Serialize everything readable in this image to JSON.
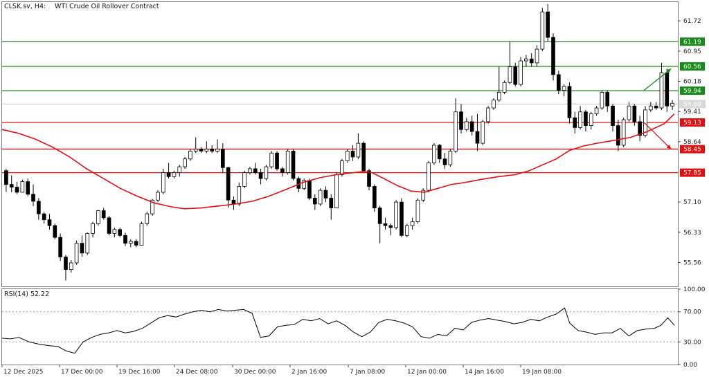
{
  "header": {
    "symbol": "CLSK.sv, H4:",
    "title": "WTI Crude Oil Rollover Contract"
  },
  "rsi_panel": {
    "label": "RSI(14) 52.22"
  },
  "colors": {
    "bull": "#ffffff",
    "bear": "#000000",
    "wick": "#000000",
    "ma": "#e01010",
    "support": "#e01010",
    "resistance": "#1a8a1a",
    "current": "#c0c0c0",
    "rsi": "#000000",
    "grid": "#999999"
  },
  "chart_data": [
    {
      "type": "candlestick",
      "title": "WTI Crude Oil Rollover Contract",
      "timeframe": "H4",
      "ylim": [
        54.95,
        62.2
      ],
      "y_ticks": [
        "61.72",
        "60.95",
        "60.18",
        "59.41",
        "58.64",
        "57.10",
        "56.33",
        "55.56"
      ],
      "x_ticks": [
        "12 Dec 2025",
        "17 Dec 00:00",
        "19 Dec 16:00",
        "24 Dec 08:00",
        "30 Dec 00:00",
        "2 Jan 16:00",
        "7 Jan 08:00",
        "12 Jan 00:00",
        "14 Jan 16:00",
        "19 Jan 08:00"
      ],
      "current_price": "59.60",
      "moving_average": {
        "points": [
          [
            0,
            58.95
          ],
          [
            10,
            58.85
          ],
          [
            20,
            58.7
          ],
          [
            30,
            58.5
          ],
          [
            40,
            58.25
          ],
          [
            50,
            57.95
          ],
          [
            60,
            57.7
          ],
          [
            70,
            57.45
          ],
          [
            80,
            57.25
          ],
          [
            90,
            57.08
          ],
          [
            100,
            56.98
          ],
          [
            108,
            56.93
          ],
          [
            118,
            56.95
          ],
          [
            128,
            57.0
          ],
          [
            138,
            57.05
          ],
          [
            148,
            57.12
          ],
          [
            158,
            57.25
          ],
          [
            168,
            57.42
          ],
          [
            178,
            57.6
          ],
          [
            188,
            57.72
          ],
          [
            198,
            57.8
          ],
          [
            208,
            57.85
          ],
          [
            214,
            57.88
          ],
          [
            219,
            57.85
          ],
          [
            226,
            57.7
          ],
          [
            234,
            57.52
          ],
          [
            242,
            57.38
          ],
          [
            250,
            57.35
          ],
          [
            258,
            57.45
          ],
          [
            266,
            57.55
          ],
          [
            274,
            57.6
          ],
          [
            284,
            57.68
          ],
          [
            294,
            57.75
          ],
          [
            304,
            57.8
          ],
          [
            312,
            57.9
          ],
          [
            320,
            58.05
          ],
          [
            328,
            58.2
          ],
          [
            336,
            58.42
          ],
          [
            344,
            58.53
          ],
          [
            352,
            58.6
          ],
          [
            362,
            58.67
          ],
          [
            372,
            58.75
          ],
          [
            382,
            58.9
          ],
          [
            392,
            59.1
          ],
          [
            398,
            59.35
          ]
        ]
      },
      "levels": [
        {
          "label": "61.19",
          "value": 61.19,
          "kind": "resistance"
        },
        {
          "label": "60.56",
          "value": 60.56,
          "kind": "resistance"
        },
        {
          "label": "59.94",
          "value": 59.94,
          "kind": "resistance"
        },
        {
          "label": "59.13",
          "value": 59.13,
          "kind": "support"
        },
        {
          "label": "58.45",
          "value": 58.45,
          "kind": "support"
        },
        {
          "label": "57.85",
          "value": 57.85,
          "kind": "support"
        }
      ],
      "arrows": [
        {
          "kind": "resistance",
          "direction": "up",
          "from": [
            380,
            59.95
          ],
          "to": [
            396,
            60.5
          ]
        },
        {
          "kind": "support",
          "direction": "down",
          "from": [
            380,
            59.13
          ],
          "to": [
            396,
            58.45
          ]
        }
      ],
      "candles_ohlc": [
        [
          57.9,
          57.95,
          57.36,
          57.55
        ],
        [
          57.55,
          57.78,
          57.35,
          57.48
        ],
        [
          57.48,
          57.62,
          57.3,
          57.35
        ],
        [
          57.35,
          57.67,
          57.35,
          57.62
        ],
        [
          57.62,
          57.7,
          57.25,
          57.3
        ],
        [
          57.3,
          57.55,
          57.0,
          57.12
        ],
        [
          57.12,
          57.2,
          56.65,
          56.8
        ],
        [
          56.8,
          56.85,
          56.55,
          56.65
        ],
        [
          56.65,
          56.8,
          56.4,
          56.5
        ],
        [
          56.5,
          56.55,
          56.15,
          56.2
        ],
        [
          56.2,
          56.3,
          55.6,
          55.7
        ],
        [
          55.7,
          55.75,
          55.1,
          55.38
        ],
        [
          55.38,
          55.62,
          55.3,
          55.55
        ],
        [
          55.55,
          56.12,
          55.5,
          56.05
        ],
        [
          56.05,
          56.25,
          55.7,
          55.8
        ],
        [
          55.8,
          56.33,
          55.75,
          56.3
        ],
        [
          56.3,
          56.6,
          56.2,
          56.55
        ],
        [
          56.55,
          56.9,
          56.5,
          56.88
        ],
        [
          56.88,
          56.95,
          56.65,
          56.7
        ],
        [
          56.7,
          56.75,
          56.25,
          56.3
        ],
        [
          56.3,
          56.45,
          56.2,
          56.4
        ],
        [
          56.4,
          56.45,
          56.2,
          56.25
        ],
        [
          56.25,
          56.32,
          55.98,
          56.05
        ],
        [
          56.05,
          56.15,
          55.95,
          56.1
        ],
        [
          56.1,
          56.15,
          55.95,
          56.0
        ],
        [
          56.0,
          56.6,
          56.0,
          56.55
        ],
        [
          56.55,
          56.85,
          56.5,
          56.8
        ],
        [
          56.8,
          57.18,
          56.75,
          57.15
        ],
        [
          57.15,
          57.4,
          57.1,
          57.35
        ],
        [
          57.35,
          57.95,
          57.3,
          57.85
        ],
        [
          57.85,
          58.1,
          57.7,
          57.75
        ],
        [
          57.75,
          57.9,
          57.7,
          57.85
        ],
        [
          57.85,
          58.05,
          57.75,
          58.0
        ],
        [
          58.0,
          58.25,
          57.95,
          58.2
        ],
        [
          58.2,
          58.45,
          58.15,
          58.4
        ],
        [
          58.4,
          58.75,
          58.35,
          58.45
        ],
        [
          58.45,
          58.5,
          58.35,
          58.4
        ],
        [
          58.4,
          58.65,
          58.35,
          58.45
        ],
        [
          58.45,
          58.55,
          58.35,
          58.4
        ],
        [
          58.4,
          58.7,
          58.35,
          58.45
        ],
        [
          58.45,
          58.6,
          57.85,
          57.98
        ],
        [
          57.98,
          58.0,
          56.96,
          57.15
        ],
        [
          57.15,
          57.25,
          56.9,
          57.05
        ],
        [
          57.05,
          57.6,
          57.0,
          57.5
        ],
        [
          57.5,
          57.9,
          57.45,
          57.85
        ],
        [
          57.85,
          58.0,
          57.8,
          57.95
        ],
        [
          57.95,
          58.1,
          57.8,
          57.85
        ],
        [
          57.85,
          57.95,
          57.55,
          57.7
        ],
        [
          57.7,
          58.05,
          57.65,
          58.0
        ],
        [
          58.0,
          58.4,
          57.95,
          58.35
        ],
        [
          58.35,
          58.4,
          57.9,
          57.95
        ],
        [
          57.95,
          58.0,
          57.75,
          57.85
        ],
        [
          57.85,
          58.45,
          57.8,
          58.4
        ],
        [
          58.4,
          58.45,
          57.65,
          57.7
        ],
        [
          57.7,
          57.75,
          57.35,
          57.45
        ],
        [
          57.45,
          57.7,
          57.4,
          57.65
        ],
        [
          57.65,
          57.7,
          57.15,
          57.2
        ],
        [
          57.2,
          57.3,
          56.9,
          57.05
        ],
        [
          57.05,
          57.45,
          57.0,
          57.4
        ],
        [
          57.4,
          57.5,
          57.1,
          57.2
        ],
        [
          57.2,
          57.3,
          56.65,
          56.95
        ],
        [
          56.95,
          57.85,
          56.95,
          57.8
        ],
        [
          57.8,
          58.2,
          57.75,
          58.15
        ],
        [
          58.15,
          58.45,
          58.1,
          58.4
        ],
        [
          58.4,
          58.55,
          58.15,
          58.25
        ],
        [
          58.25,
          58.85,
          58.2,
          58.6
        ],
        [
          58.6,
          58.65,
          57.85,
          57.9
        ],
        [
          57.9,
          57.95,
          57.4,
          57.5
        ],
        [
          57.5,
          57.55,
          56.85,
          56.95
        ],
        [
          56.95,
          57.0,
          56.05,
          56.55
        ],
        [
          56.55,
          56.7,
          56.4,
          56.5
        ],
        [
          56.5,
          56.55,
          56.25,
          56.45
        ],
        [
          56.45,
          57.15,
          56.4,
          57.1
        ],
        [
          57.1,
          57.2,
          56.2,
          56.25
        ],
        [
          56.25,
          56.55,
          56.2,
          56.5
        ],
        [
          56.5,
          56.7,
          56.4,
          56.6
        ],
        [
          56.6,
          57.2,
          56.55,
          57.15
        ],
        [
          57.15,
          57.45,
          57.1,
          57.4
        ],
        [
          57.4,
          58.15,
          57.35,
          58.1
        ],
        [
          58.1,
          58.6,
          58.05,
          58.55
        ],
        [
          58.55,
          58.58,
          58.1,
          58.2
        ],
        [
          58.2,
          58.35,
          57.95,
          58.05
        ],
        [
          58.05,
          58.45,
          58.0,
          58.4
        ],
        [
          58.4,
          59.75,
          58.35,
          59.4
        ],
        [
          59.4,
          59.6,
          58.85,
          58.95
        ],
        [
          58.95,
          59.25,
          58.9,
          59.15
        ],
        [
          59.15,
          59.3,
          58.8,
          58.9
        ],
        [
          58.9,
          59.35,
          58.4,
          58.6
        ],
        [
          58.6,
          59.2,
          58.55,
          59.15
        ],
        [
          59.15,
          59.55,
          59.1,
          59.5
        ],
        [
          59.5,
          59.75,
          59.45,
          59.7
        ],
        [
          59.7,
          60.55,
          59.65,
          59.9
        ],
        [
          59.9,
          60.2,
          59.85,
          60.15
        ],
        [
          60.15,
          61.2,
          60.1,
          60.55
        ],
        [
          60.55,
          60.65,
          60.05,
          60.1
        ],
        [
          60.1,
          60.8,
          60.05,
          60.7
        ],
        [
          60.7,
          60.85,
          60.55,
          60.75
        ],
        [
          60.75,
          60.9,
          60.55,
          60.65
        ],
        [
          60.65,
          61.1,
          60.55,
          61.0
        ],
        [
          61.0,
          62.05,
          60.95,
          61.95
        ],
        [
          61.95,
          62.15,
          61.2,
          61.3
        ],
        [
          61.3,
          61.4,
          60.2,
          60.35
        ],
        [
          60.35,
          60.45,
          59.85,
          59.95
        ],
        [
          59.95,
          60.1,
          59.8,
          60.05
        ],
        [
          60.05,
          60.15,
          59.1,
          59.25
        ],
        [
          59.25,
          59.4,
          58.85,
          59.0
        ],
        [
          59.0,
          59.55,
          58.95,
          59.4
        ],
        [
          59.4,
          59.45,
          58.9,
          59.05
        ],
        [
          59.05,
          59.4,
          58.95,
          59.35
        ],
        [
          59.35,
          59.55,
          59.3,
          59.5
        ],
        [
          59.5,
          59.95,
          59.45,
          59.9
        ],
        [
          59.9,
          59.95,
          59.4,
          59.55
        ],
        [
          59.55,
          59.6,
          58.9,
          59.05
        ],
        [
          59.05,
          59.2,
          58.4,
          58.55
        ],
        [
          58.55,
          59.25,
          58.5,
          59.2
        ],
        [
          59.2,
          59.65,
          59.15,
          59.55
        ],
        [
          59.55,
          59.6,
          59.05,
          59.15
        ],
        [
          59.15,
          59.3,
          58.65,
          58.8
        ],
        [
          58.8,
          59.55,
          58.75,
          59.45
        ],
        [
          59.45,
          59.65,
          59.4,
          59.55
        ],
        [
          59.55,
          59.65,
          59.45,
          59.5
        ],
        [
          59.5,
          60.65,
          59.45,
          60.4
        ],
        [
          60.4,
          60.5,
          59.4,
          59.55
        ],
        [
          59.55,
          59.7,
          59.45,
          59.62
        ]
      ]
    },
    {
      "type": "line",
      "title": "RSI(14) 52.22",
      "ylim": [
        0,
        100
      ],
      "y_ticks": [
        "100.00",
        "70.00",
        "30.00",
        "0.00"
      ],
      "levels": [
        70,
        30
      ],
      "points": [
        [
          0,
          35
        ],
        [
          5,
          34
        ],
        [
          10,
          36
        ],
        [
          16,
          30
        ],
        [
          22,
          27
        ],
        [
          28,
          25
        ],
        [
          33,
          24
        ],
        [
          38,
          18
        ],
        [
          43,
          15
        ],
        [
          48,
          30
        ],
        [
          53,
          36
        ],
        [
          58,
          40
        ],
        [
          63,
          42
        ],
        [
          68,
          45
        ],
        [
          73,
          42
        ],
        [
          78,
          44
        ],
        [
          83,
          48
        ],
        [
          88,
          55
        ],
        [
          93,
          62
        ],
        [
          98,
          65
        ],
        [
          103,
          63
        ],
        [
          108,
          67
        ],
        [
          113,
          70
        ],
        [
          118,
          72
        ],
        [
          123,
          70
        ],
        [
          128,
          73
        ],
        [
          133,
          71
        ],
        [
          138,
          72
        ],
        [
          143,
          73
        ],
        [
          148,
          68
        ],
        [
          153,
          36
        ],
        [
          158,
          38
        ],
        [
          163,
          50
        ],
        [
          168,
          52
        ],
        [
          173,
          53
        ],
        [
          178,
          60
        ],
        [
          183,
          58
        ],
        [
          188,
          61
        ],
        [
          193,
          54
        ],
        [
          198,
          58
        ],
        [
          203,
          52
        ],
        [
          208,
          43
        ],
        [
          213,
          37
        ],
        [
          218,
          43
        ],
        [
          223,
          56
        ],
        [
          228,
          60
        ],
        [
          233,
          58
        ],
        [
          238,
          55
        ],
        [
          243,
          50
        ],
        [
          248,
          37
        ],
        [
          253,
          35
        ],
        [
          258,
          40
        ],
        [
          263,
          38
        ],
        [
          268,
          48
        ],
        [
          273,
          46
        ],
        [
          278,
          56
        ],
        [
          283,
          59
        ],
        [
          288,
          61
        ],
        [
          293,
          59
        ],
        [
          298,
          57
        ],
        [
          303,
          54
        ],
        [
          308,
          56
        ],
        [
          313,
          60
        ],
        [
          318,
          58
        ],
        [
          323,
          63
        ],
        [
          328,
          67
        ],
        [
          333,
          75
        ],
        [
          336,
          55
        ],
        [
          341,
          45
        ],
        [
          346,
          43
        ],
        [
          351,
          40
        ],
        [
          356,
          42
        ],
        [
          361,
          42
        ],
        [
          366,
          48
        ],
        [
          371,
          38
        ],
        [
          376,
          45
        ],
        [
          381,
          47
        ],
        [
          386,
          48
        ],
        [
          390,
          52
        ],
        [
          394,
          62
        ],
        [
          398,
          52
        ]
      ]
    }
  ]
}
